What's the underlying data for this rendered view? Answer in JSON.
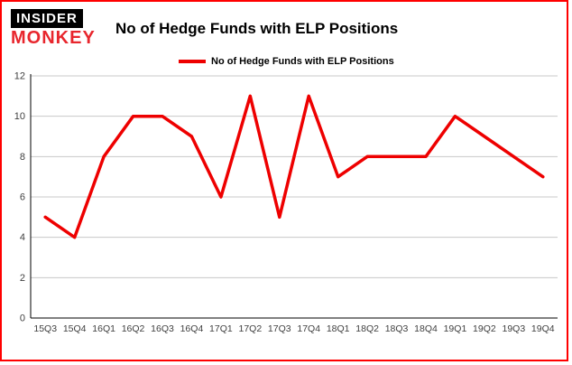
{
  "logo": {
    "line1": "INSIDER",
    "line2": "MONKEY"
  },
  "header": {
    "title": "No of Hedge Funds with ELP Positions"
  },
  "legend": {
    "label": "No of Hedge Funds with ELP Positions"
  },
  "colors": {
    "line": "#ee0000",
    "border": "#ff0000",
    "grid": "#c8c8c8",
    "axis": "#000000",
    "tick_text": "#404040"
  },
  "chart_data": {
    "type": "line",
    "title": "No of Hedge Funds with ELP Positions",
    "categories": [
      "15Q3",
      "15Q4",
      "16Q1",
      "16Q2",
      "16Q3",
      "16Q4",
      "17Q1",
      "17Q2",
      "17Q3",
      "17Q4",
      "18Q1",
      "18Q2",
      "18Q3",
      "18Q4",
      "19Q1",
      "19Q2",
      "19Q3",
      "19Q4"
    ],
    "values": [
      5,
      4,
      8,
      10,
      10,
      9,
      6,
      11,
      5,
      11,
      7,
      8,
      8,
      8,
      10,
      9,
      8,
      7
    ],
    "xlabel": "",
    "ylabel": "",
    "ylim": [
      0,
      12
    ],
    "yticks": [
      0,
      2,
      4,
      6,
      8,
      10,
      12
    ],
    "grid": true,
    "legend_position": "top-left"
  }
}
